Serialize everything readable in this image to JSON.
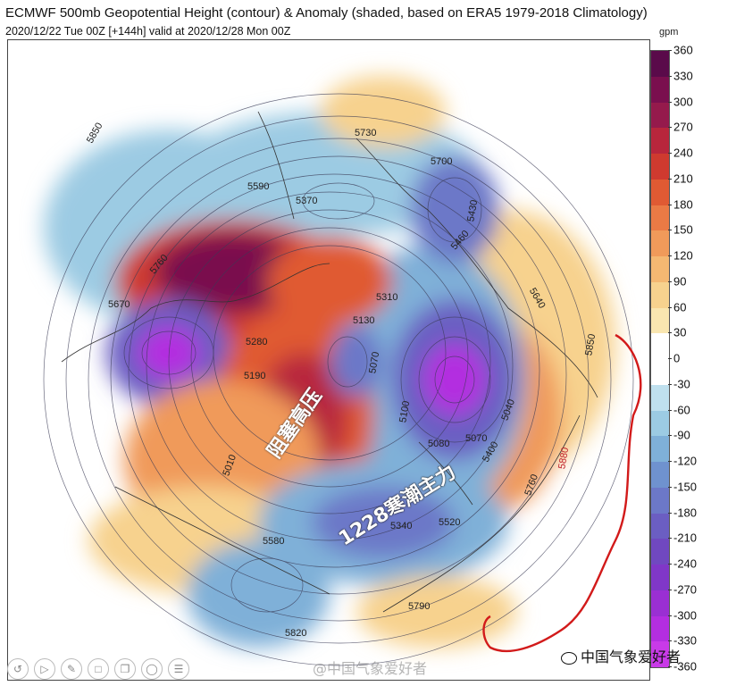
{
  "title": "ECMWF 500mb Geopotential Height (contour) & Anomaly (shaded, based on ERA5 1979-2018 Climatology)",
  "subtitle": "2020/12/22 Tue 00Z [+144h] valid at 2020/12/28 Mon 00Z",
  "colorbar": {
    "unit": "gpm",
    "ticks": [
      "360",
      "330",
      "300",
      "270",
      "240",
      "210",
      "180",
      "150",
      "120",
      "90",
      "60",
      "30",
      "0",
      "-30",
      "-60",
      "-90",
      "-120",
      "-150",
      "-180",
      "-210",
      "-240",
      "-270",
      "-300",
      "-330",
      "-360"
    ],
    "colors": [
      "#5a0a4a",
      "#7a0f4e",
      "#951a4c",
      "#b8263c",
      "#cf3a2f",
      "#e05a33",
      "#ea7a45",
      "#f09a5a",
      "#f4b872",
      "#f7d28e",
      "#f9e6b0",
      "#ffffff",
      "#ffffff",
      "#bfe0ee",
      "#9ccbe3",
      "#7fb0d8",
      "#6f92cf",
      "#6c78c8",
      "#6b5ec2",
      "#7048c0",
      "#8037c8",
      "#9a2fd3",
      "#b32ee0",
      "#c93ae8"
    ]
  },
  "annotations": {
    "blocking_high": "阻塞高压",
    "cold_wave": "1228寒潮主力"
  },
  "contour_labels": [
    "5850",
    "5730",
    "5700",
    "5590",
    "5370",
    "5430",
    "5460",
    "5760",
    "5640",
    "5850",
    "5670",
    "5280",
    "5310",
    "5130",
    "5070",
    "5190",
    "5100",
    "5070",
    "5040",
    "5080",
    "5400",
    "5880",
    "5340",
    "5520",
    "5760",
    "5580",
    "5790",
    "5820",
    "5010"
  ],
  "toolbar": {
    "icons": [
      "replay-icon",
      "next-icon",
      "pencil-icon",
      "expand-icon",
      "copy-icon",
      "zoom-icon",
      "list-icon"
    ]
  },
  "watermark": {
    "center": "@中国气象爱好者",
    "right": "中国气象爱好者"
  }
}
